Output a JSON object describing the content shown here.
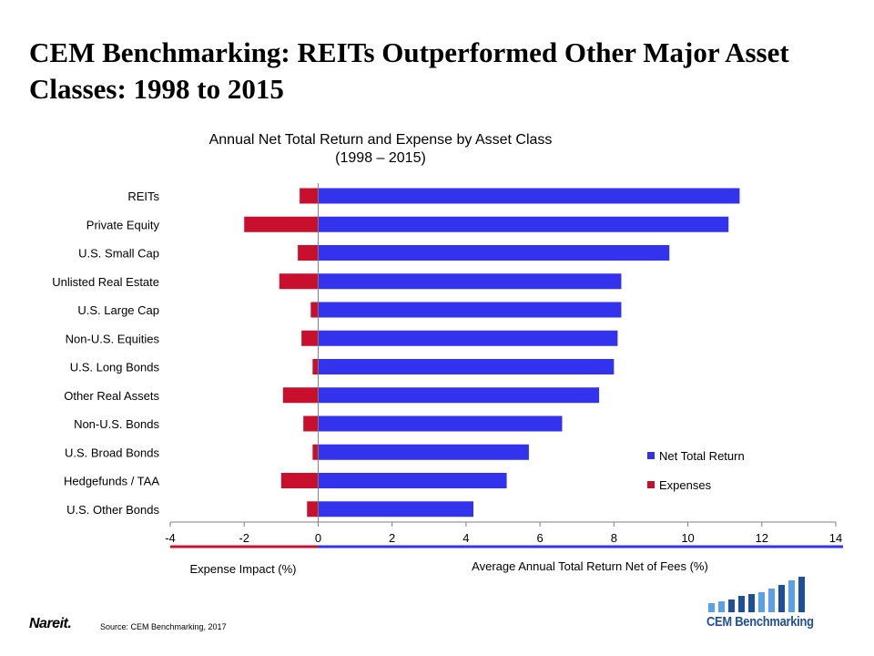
{
  "slide": {
    "title": "CEM Benchmarking: REITs Outperformed Other Major Asset Classes: 1998 to 2015",
    "source": "Source: CEM Benchmarking, 2017",
    "nareit_logo": "Nareit.",
    "cem_logo": "CEM Benchmarking"
  },
  "colors": {
    "net_total_return": "#3333ee",
    "expenses": "#c8102e",
    "cem_blue": "#1f4e9a",
    "cem_light": "#5aa0e6"
  },
  "chart_data": {
    "type": "bar",
    "orientation": "horizontal",
    "title": "Annual Net Total Return and Expense by Asset Class",
    "subtitle": "(1998 – 2015)",
    "categories": [
      "REITs",
      "Private Equity",
      "U.S. Small Cap",
      "Unlisted Real Estate",
      "U.S. Large Cap",
      "Non-U.S. Equities",
      "U.S. Long Bonds",
      "Other Real Assets",
      "Non-U.S. Bonds",
      "U.S. Broad Bonds",
      "Hedgefunds / TAA",
      "U.S. Other Bonds"
    ],
    "series": [
      {
        "name": "Net Total Return",
        "values": [
          11.4,
          11.1,
          9.5,
          8.2,
          8.2,
          8.1,
          8.0,
          7.6,
          6.6,
          5.7,
          5.1,
          4.2
        ]
      },
      {
        "name": "Expenses",
        "values": [
          -0.5,
          -2.0,
          -0.55,
          -1.05,
          -0.2,
          -0.45,
          -0.15,
          -0.95,
          -0.4,
          -0.15,
          -1.0,
          -0.3
        ]
      }
    ],
    "xlim": [
      -4,
      14
    ],
    "xticks": [
      -4,
      -2,
      0,
      2,
      4,
      6,
      8,
      10,
      12,
      14
    ],
    "xlabel_left": "Expense Impact (%)",
    "xlabel_right": "Average Annual Total Return Net of Fees (%)",
    "legend_placement": "bottom-right",
    "grid": false
  }
}
